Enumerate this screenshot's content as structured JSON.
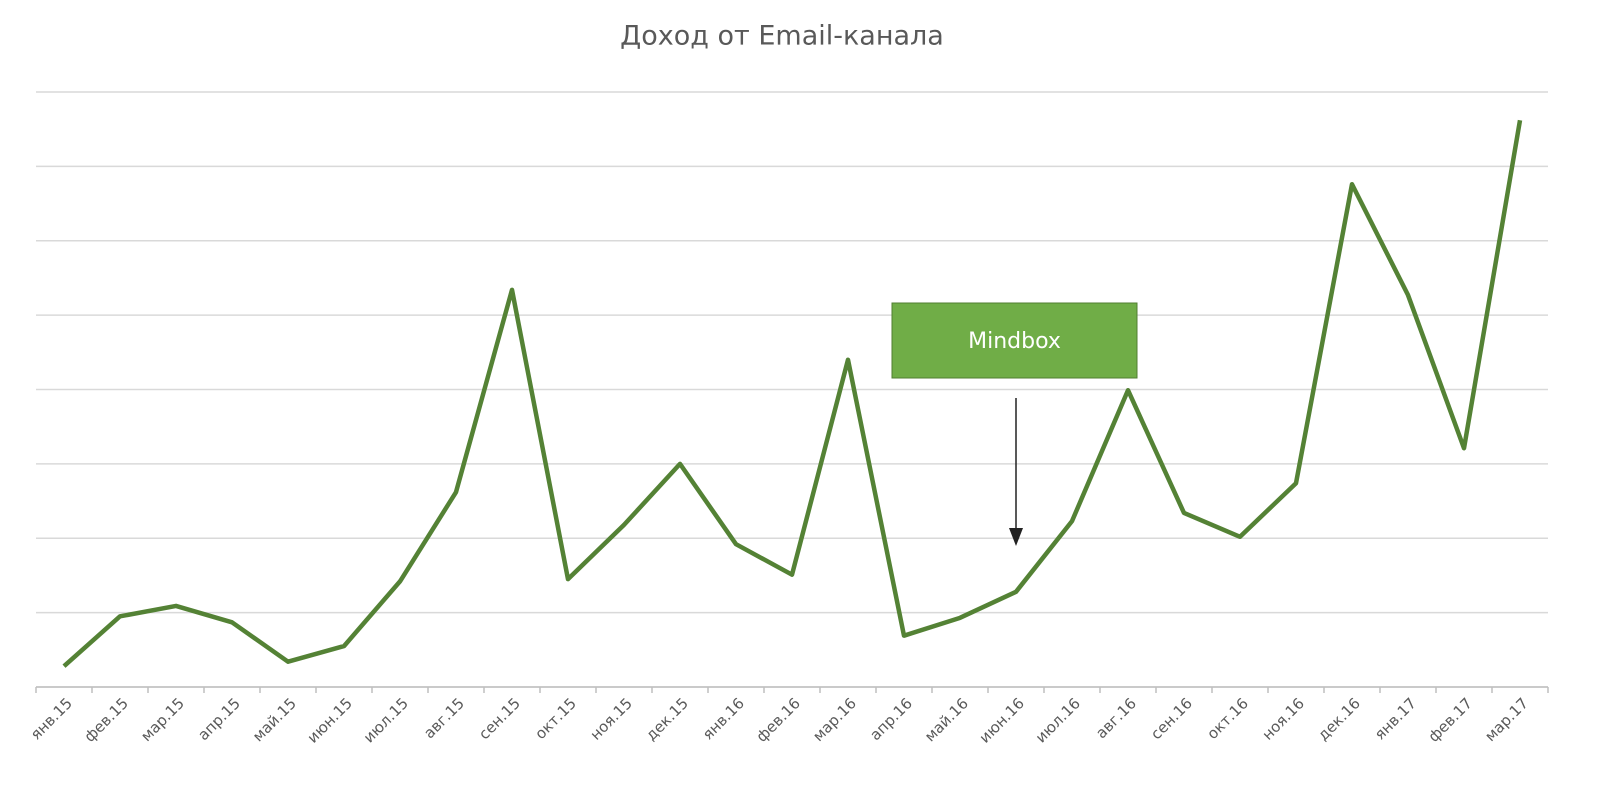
{
  "chart_data": {
    "type": "line",
    "title": "Доход от Email-канала",
    "categories": [
      "янв.15",
      "фев.15",
      "мар.15",
      "апр.15",
      "май.15",
      "июн.15",
      "июл.15",
      "авг.15",
      "сен.15",
      "окт.15",
      "ноя.15",
      "дек.15",
      "янв.16",
      "фев.16",
      "мар.16",
      "апр.16",
      "май.16",
      "июн.16",
      "июл.16",
      "авг.16",
      "сен.16",
      "окт.16",
      "ноя.16",
      "дек.16",
      "янв.17",
      "фев.17",
      "мар.17"
    ],
    "series": [
      {
        "color": "#548235",
        "values": [
          0.28,
          0.95,
          1.09,
          0.87,
          0.34,
          0.55,
          1.42,
          2.62,
          5.34,
          1.45,
          2.18,
          3.0,
          1.92,
          1.51,
          4.4,
          0.69,
          0.93,
          1.28,
          2.23,
          3.99,
          2.34,
          2.02,
          2.74,
          6.76,
          5.27,
          3.21,
          7.62
        ]
      }
    ],
    "ylim": [
      0,
      8
    ],
    "yticks": [
      0,
      1,
      2,
      3,
      4,
      5,
      6,
      7,
      8
    ],
    "grid": true,
    "show_y_tick_labels": false,
    "annotation": {
      "text": "Mindbox",
      "color": "#70ad47",
      "category_index": 17
    }
  }
}
